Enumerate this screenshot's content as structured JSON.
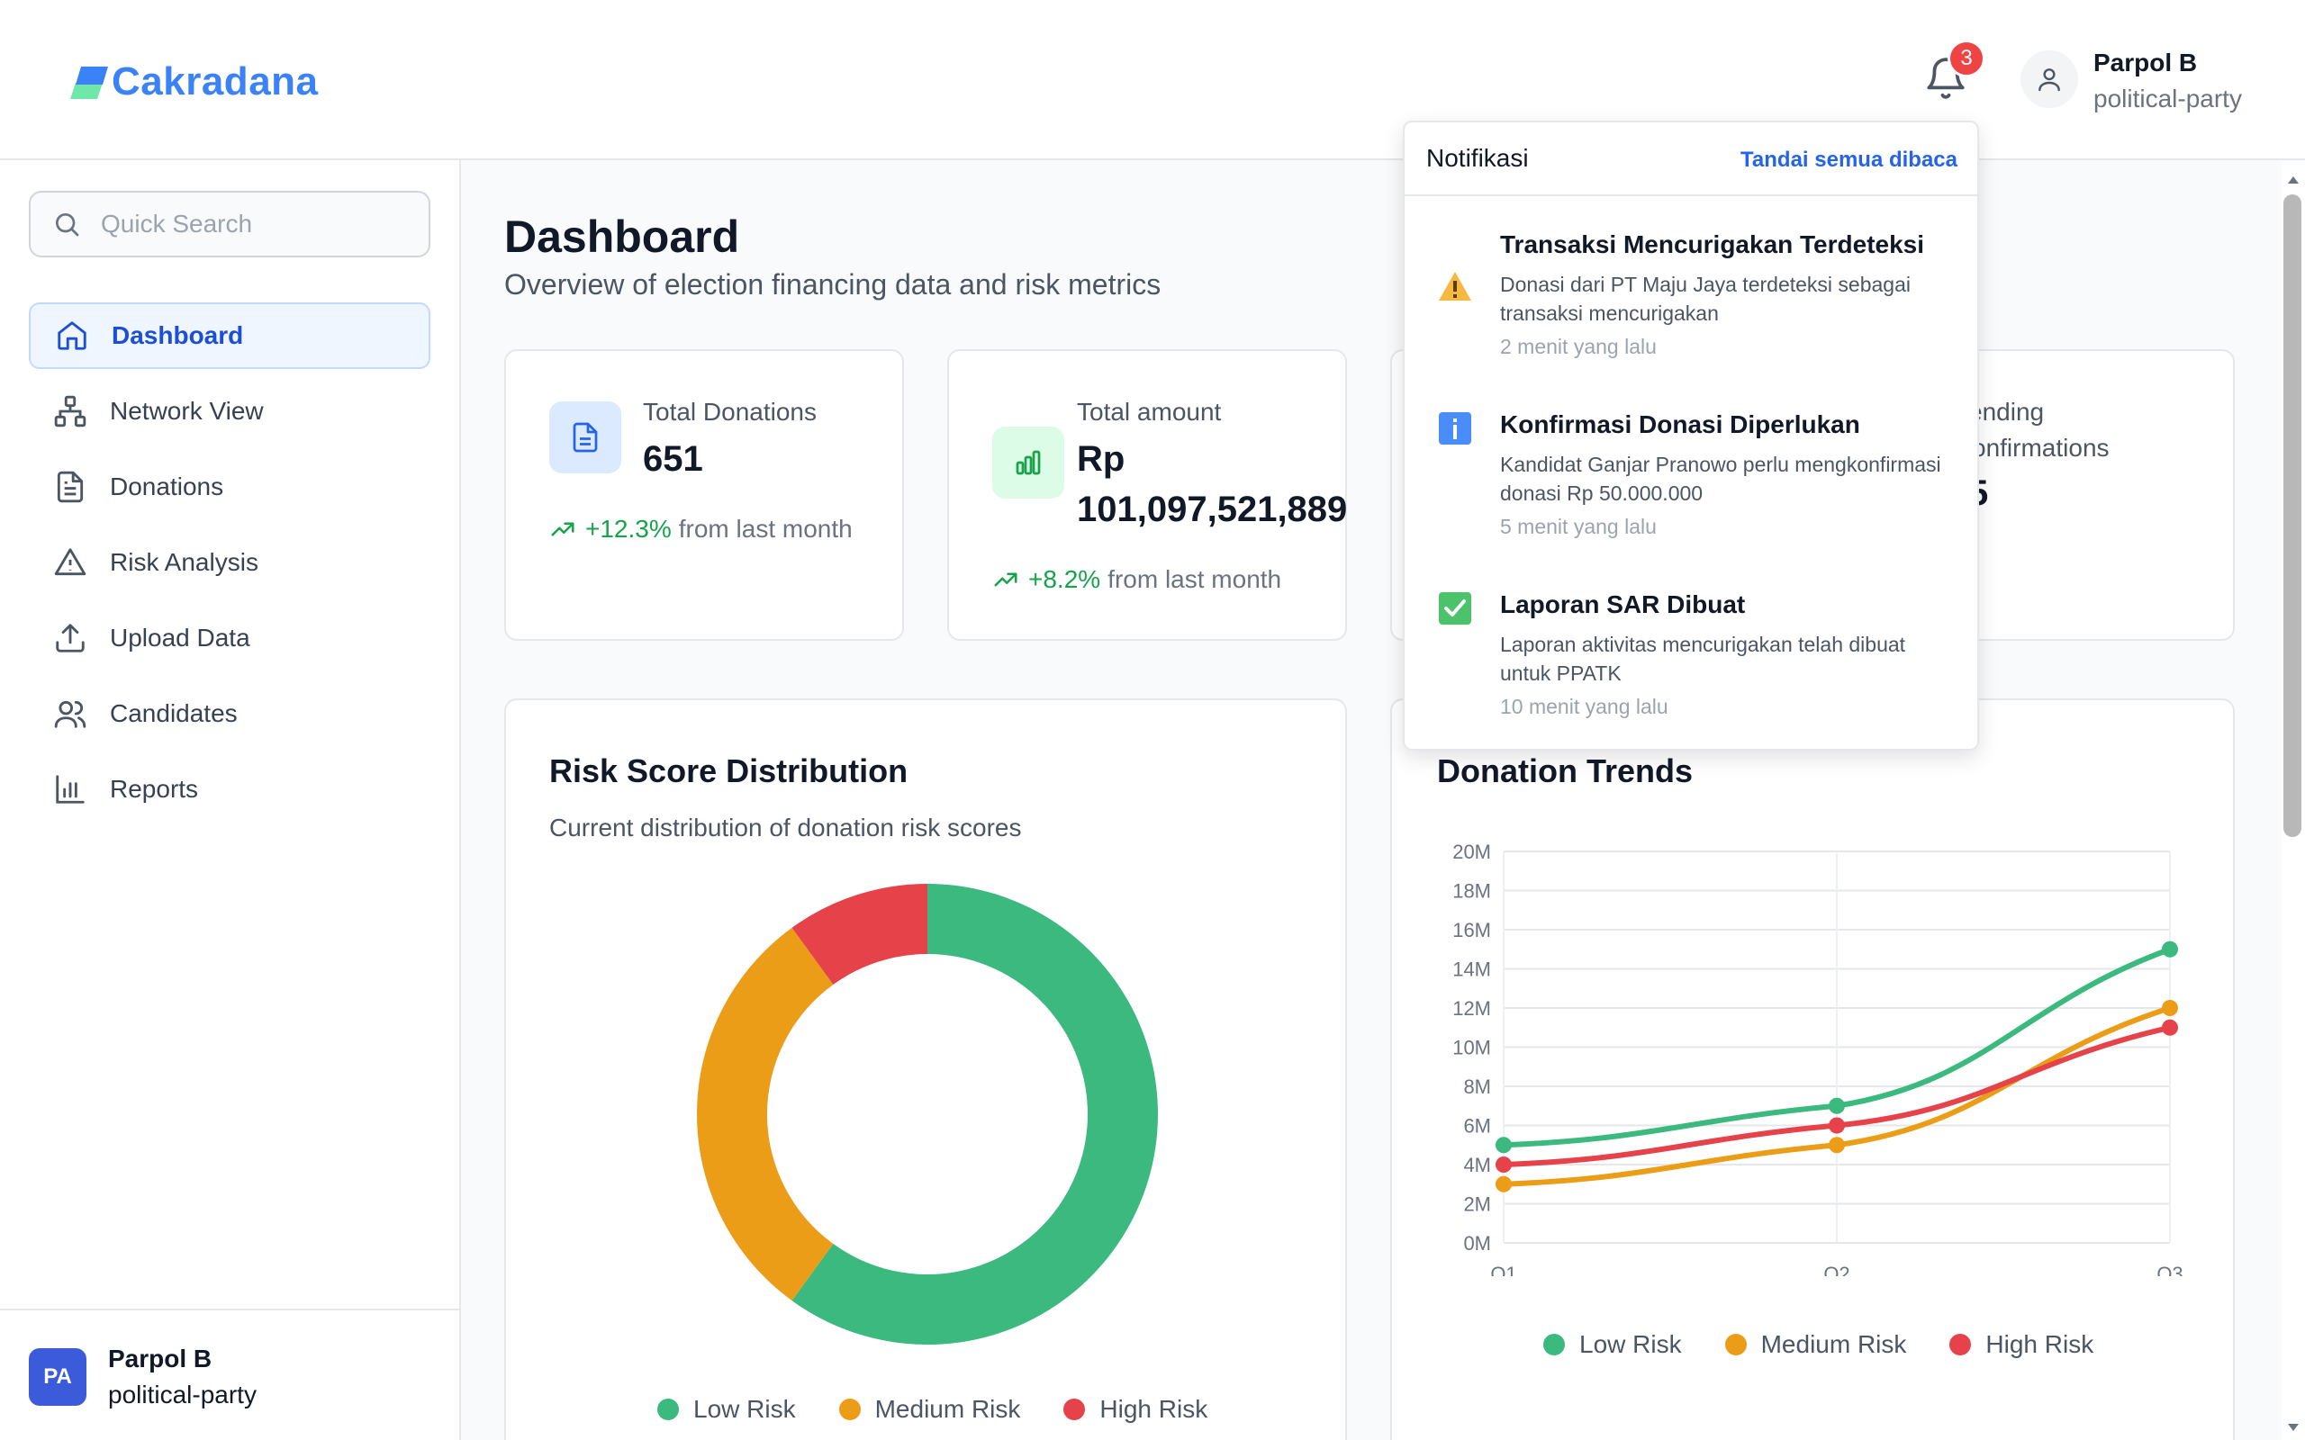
{
  "header": {
    "app_name": "Cakradana",
    "notification_count": "3",
    "user_name": "Parpol B",
    "user_role": "political-party"
  },
  "sidebar": {
    "search_placeholder": "Quick Search",
    "items": [
      {
        "label": "Dashboard",
        "icon": "home-icon",
        "active": true
      },
      {
        "label": "Network View",
        "icon": "network-icon"
      },
      {
        "label": "Donations",
        "icon": "document-icon"
      },
      {
        "label": "Risk Analysis",
        "icon": "warning-icon"
      },
      {
        "label": "Upload Data",
        "icon": "upload-icon"
      },
      {
        "label": "Candidates",
        "icon": "users-icon"
      },
      {
        "label": "Reports",
        "icon": "bar-chart-icon"
      }
    ],
    "footer": {
      "initials": "PA",
      "name": "Parpol B",
      "role": "political-party"
    }
  },
  "main": {
    "title": "Dashboard",
    "subtitle": "Overview of election financing data and risk metrics",
    "stats": [
      {
        "label": "Total Donations",
        "value": "651",
        "change": "+12.3%",
        "change_suffix": "from last month"
      },
      {
        "label": "Total amount",
        "value_line1": "Rp",
        "value_line2": "101,097,521,889",
        "change": "+8.2%",
        "change_suffix": "from last month"
      },
      {
        "label_line1": "ending",
        "label_line2": "onfirmations",
        "value": "5"
      }
    ]
  },
  "risk_chart": {
    "title": "Risk Score Distribution",
    "description": "Current distribution of donation risk scores",
    "legend": [
      "Low Risk",
      "Medium Risk",
      "High Risk"
    ]
  },
  "trend_chart": {
    "title": "Donation Trends",
    "legend": [
      "Low Risk",
      "Medium Risk",
      "High Risk"
    ]
  },
  "chart_data": [
    {
      "type": "pie",
      "title": "Risk Score Distribution",
      "categories": [
        "Low Risk",
        "Medium Risk",
        "High Risk"
      ],
      "values": [
        60,
        30,
        10
      ],
      "colors": [
        "#3cb97e",
        "#eb9d17",
        "#e5424a"
      ],
      "legend": "bottom"
    },
    {
      "type": "line",
      "title": "Donation Trends",
      "categories": [
        "Q1",
        "Q2",
        "Q3"
      ],
      "series": [
        {
          "name": "Low Risk",
          "values": [
            5,
            7,
            15
          ],
          "color": "#3cb97e"
        },
        {
          "name": "Medium Risk",
          "values": [
            3,
            5,
            12
          ],
          "color": "#eb9d17"
        },
        {
          "name": "High Risk",
          "values": [
            4,
            6,
            11
          ],
          "color": "#e5424a"
        }
      ],
      "ylim": [
        0,
        20
      ],
      "yticks": [
        "0M",
        "2M",
        "4M",
        "6M",
        "8M",
        "10M",
        "12M",
        "14M",
        "16M",
        "18M",
        "20M"
      ],
      "grid": true,
      "legend": "bottom"
    }
  ],
  "notifications": {
    "title": "Notifikasi",
    "mark_all": "Tandai semua dibaca",
    "items": [
      {
        "icon": "warning-icon",
        "title": "Transaksi Mencurigakan Terdeteksi",
        "body": "Donasi dari PT Maju Jaya terdeteksi sebagai transaksi mencurigakan",
        "time": "2 menit yang lalu"
      },
      {
        "icon": "info-icon",
        "title": "Konfirmasi Donasi Diperlukan",
        "body": "Kandidat Ganjar Pranowo perlu mengkonfirmasi donasi Rp 50.000.000",
        "time": "5 menit yang lalu"
      },
      {
        "icon": "check-icon",
        "title": "Laporan SAR Dibuat",
        "body": "Laporan aktivitas mencurigakan telah dibuat untuk PPATK",
        "time": "10 menit yang lalu"
      }
    ]
  }
}
